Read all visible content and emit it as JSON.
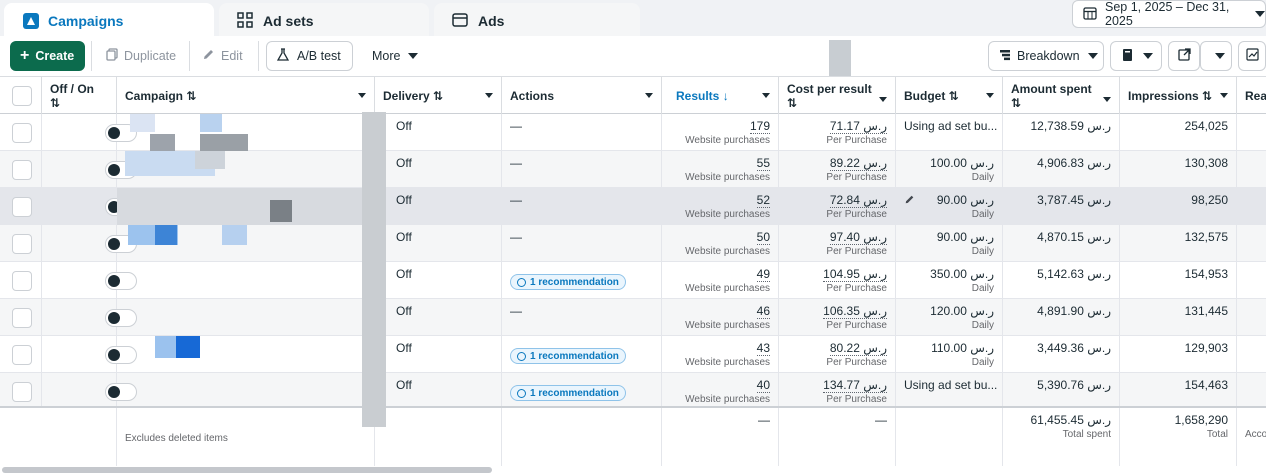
{
  "tabs": [
    {
      "label": "Campaigns",
      "active": true
    },
    {
      "label": "Ad sets",
      "active": false
    },
    {
      "label": "Ads",
      "active": false
    }
  ],
  "date_range": "Sep 1, 2025 – Dec 31, 2025",
  "toolbar": {
    "create": "Create",
    "duplicate": "Duplicate",
    "edit": "Edit",
    "ab_test": "A/B test",
    "more": "More",
    "breakdown": "Breakdown"
  },
  "columns": {
    "off_on": "Off / On",
    "campaign": "Campaign",
    "delivery": "Delivery",
    "actions": "Actions",
    "results": "Results",
    "cost_per_result": "Cost per result",
    "budget": "Budget",
    "amount_spent": "Amount spent",
    "impressions": "Impressions",
    "reach": "Rea"
  },
  "rows": [
    {
      "delivery": "Off",
      "action": "—",
      "results": "179",
      "results_type": "Website purchases",
      "cpr": "71.17 ر.س",
      "cpr_sub": "Per Purchase",
      "budget": "Using ad set bu...",
      "budget_sub": "",
      "spent": "12,738.59 ر.س",
      "impressions": "254,025"
    },
    {
      "delivery": "Off",
      "action": "—",
      "results": "55",
      "results_type": "Website purchases",
      "cpr": "89.22 ر.س",
      "cpr_sub": "Per Purchase",
      "budget": "100.00 ر.س",
      "budget_sub": "Daily",
      "spent": "4,906.83 ر.س",
      "impressions": "130,308"
    },
    {
      "delivery": "Off",
      "action": "—",
      "results": "52",
      "results_type": "Website purchases",
      "cpr": "72.84 ر.س",
      "cpr_sub": "Per Purchase",
      "budget": "90.00 ر.س",
      "budget_sub": "Daily",
      "spent": "3,787.45 ر.س",
      "impressions": "98,250"
    },
    {
      "delivery": "Off",
      "action": "—",
      "results": "50",
      "results_type": "Website purchases",
      "cpr": "97.40 ر.س",
      "cpr_sub": "Per Purchase",
      "budget": "90.00 ر.س",
      "budget_sub": "Daily",
      "spent": "4,870.15 ر.س",
      "impressions": "132,575"
    },
    {
      "delivery": "Off",
      "action": "1 recommendation",
      "results": "49",
      "results_type": "Website purchases",
      "cpr": "104.95 ر.س",
      "cpr_sub": "Per Purchase",
      "budget": "350.00 ر.س",
      "budget_sub": "Daily",
      "spent": "5,142.63 ر.س",
      "impressions": "154,953"
    },
    {
      "delivery": "Off",
      "action": "—",
      "results": "46",
      "results_type": "Website purchases",
      "cpr": "106.35 ر.س",
      "cpr_sub": "Per Purchase",
      "budget": "120.00 ر.س",
      "budget_sub": "Daily",
      "spent": "4,891.90 ر.س",
      "impressions": "131,445"
    },
    {
      "delivery": "Off",
      "action": "1 recommendation",
      "results": "43",
      "results_type": "Website purchases",
      "cpr": "80.22 ر.س",
      "cpr_sub": "Per Purchase",
      "budget": "110.00 ر.س",
      "budget_sub": "Daily",
      "spent": "3,449.36 ر.س",
      "impressions": "129,903"
    },
    {
      "delivery": "Off",
      "action": "1 recommendation",
      "results": "40",
      "results_type": "Website purchases",
      "cpr": "134.77 ر.س",
      "cpr_sub": "Per Purchase",
      "budget": "Using ad set bu...",
      "budget_sub": "",
      "spent": "5,390.76 ر.س",
      "impressions": "154,463"
    }
  ],
  "footer": {
    "excludes": "Excludes deleted items",
    "results": "—",
    "cpr": "—",
    "spent": "61,455.45 ر.س",
    "spent_sub": "Total spent",
    "impressions": "1,658,290",
    "impressions_sub": "Total",
    "reach_sub": "Acco"
  },
  "colors": {
    "accent": "#0a78be",
    "create": "#0c6b4d"
  }
}
